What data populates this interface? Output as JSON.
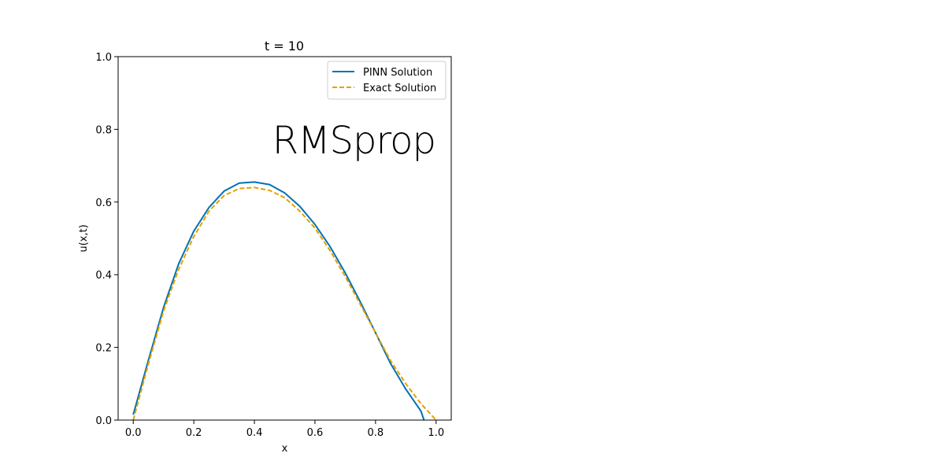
{
  "chart_data": {
    "type": "line",
    "title": "t = 10",
    "xlabel": "x",
    "ylabel": "u(x,t)",
    "xlim": [
      -0.05,
      1.05
    ],
    "ylim": [
      0.0,
      1.0
    ],
    "xticks": [
      0.0,
      0.2,
      0.4,
      0.6,
      0.8,
      1.0
    ],
    "xtick_labels": [
      "0.0",
      "0.2",
      "0.4",
      "0.6",
      "0.8",
      "1.0"
    ],
    "yticks": [
      0.0,
      0.2,
      0.4,
      0.6,
      0.8,
      1.0
    ],
    "ytick_labels": [
      "0.0",
      "0.2",
      "0.4",
      "0.6",
      "0.8",
      "1.0"
    ],
    "grid": false,
    "legend_position": "top-right",
    "annotation": "RMSprop",
    "series": [
      {
        "name": "PINN Solution",
        "color": "#0072b2",
        "style": "solid",
        "x": [
          0.0,
          0.05,
          0.1,
          0.15,
          0.2,
          0.25,
          0.3,
          0.35,
          0.4,
          0.45,
          0.5,
          0.55,
          0.6,
          0.65,
          0.7,
          0.75,
          0.8,
          0.85,
          0.9,
          0.95,
          0.96
        ],
        "y": [
          0.015,
          0.165,
          0.31,
          0.43,
          0.52,
          0.585,
          0.63,
          0.652,
          0.655,
          0.648,
          0.625,
          0.588,
          0.538,
          0.477,
          0.405,
          0.325,
          0.24,
          0.155,
          0.085,
          0.025,
          0.0
        ]
      },
      {
        "name": "Exact Solution",
        "color": "#e69f00",
        "style": "dashed",
        "x": [
          0.0,
          0.05,
          0.1,
          0.15,
          0.2,
          0.25,
          0.3,
          0.35,
          0.4,
          0.45,
          0.5,
          0.55,
          0.6,
          0.65,
          0.7,
          0.75,
          0.8,
          0.85,
          0.9,
          0.95,
          1.0
        ],
        "y": [
          0.0,
          0.155,
          0.3,
          0.415,
          0.505,
          0.575,
          0.618,
          0.637,
          0.64,
          0.632,
          0.612,
          0.575,
          0.528,
          0.466,
          0.395,
          0.318,
          0.24,
          0.163,
          0.1,
          0.045,
          0.0
        ]
      }
    ]
  }
}
